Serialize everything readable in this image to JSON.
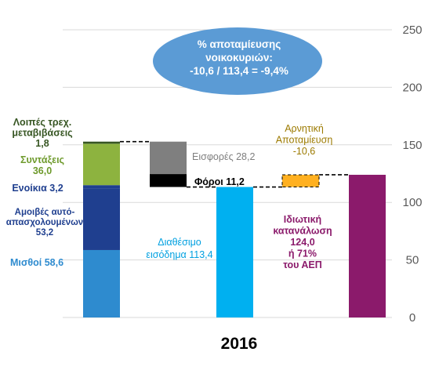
{
  "chart_data": {
    "type": "bar",
    "subtype": "waterfall",
    "xlabel": "2016",
    "ylim": [
      0,
      250
    ],
    "yticks": [
      0,
      50,
      100,
      150,
      200,
      250
    ],
    "grid": true,
    "segments": [
      {
        "id": "misthoi",
        "column": 0,
        "base": 0,
        "value": 58.6,
        "color": "#2E8BCF",
        "label": "Μισθοί 58,6",
        "label_color": "#2E8BCF"
      },
      {
        "id": "amoives",
        "column": 0,
        "base": 58.6,
        "value": 53.2,
        "color": "#1F3F8F",
        "label": [
          "Αμοιβές αυτό-",
          "απασχολουμένων",
          "53,2"
        ],
        "label_color": "#1F3F8F"
      },
      {
        "id": "enoikia",
        "column": 0,
        "base": 111.8,
        "value": 3.2,
        "color": "#1F3F8F",
        "label": "Ενοίκια 3,2",
        "label_color": "#1F3F8F"
      },
      {
        "id": "syntaxeis",
        "column": 0,
        "base": 115.0,
        "value": 36.0,
        "color": "#8DB33F",
        "label": [
          "Συντάξεις",
          "36,0"
        ],
        "label_color": "#6E9A2C"
      },
      {
        "id": "loipes",
        "column": 0,
        "base": 151.0,
        "value": 1.8,
        "color": "#375623",
        "label": [
          "Λοιπές τρεχ.",
          "μεταβιβάσεις",
          "1,8"
        ],
        "label_color": "#375623"
      },
      {
        "id": "eisfores",
        "column": 1,
        "base": 124.6,
        "value": 28.2,
        "color": "#7F7F7F",
        "label": "Εισφορές 28,2",
        "label_color": "#7F7F7F"
      },
      {
        "id": "foroi",
        "column": 1,
        "base": 113.4,
        "value": 11.2,
        "color": "#000000",
        "label": "Φόροι 11,2",
        "label_color": "#000000"
      },
      {
        "id": "diathesimo",
        "column": 2,
        "base": 0,
        "value": 113.4,
        "color": "#00B0F0",
        "label": [
          "Διαθέσιμο",
          "εισόδημα 113,4"
        ],
        "label_color": "#00A0E0"
      },
      {
        "id": "apotamieusi",
        "column": 3,
        "base": 113.4,
        "value": 10.6,
        "color": "#FFB020",
        "label": [
          "Αρνητική",
          "Αποταμίευση",
          "-10,6"
        ],
        "label_color": "#9C7A00"
      },
      {
        "id": "katanalosi",
        "column": 4,
        "base": 0,
        "value": 124.0,
        "color": "#8B1A6B",
        "label": [
          "Ιδιωτική",
          "κατανάλωση",
          "124,0",
          "ή 71%",
          "του ΑΕΠ"
        ],
        "label_color": "#8B1A6B"
      }
    ],
    "annotation": [
      "% αποταμίευσης",
      "νοικοκυριών:",
      "-10,6 / 113,4 = -9,4%"
    ],
    "annotation_color": "#5B9BD5"
  }
}
